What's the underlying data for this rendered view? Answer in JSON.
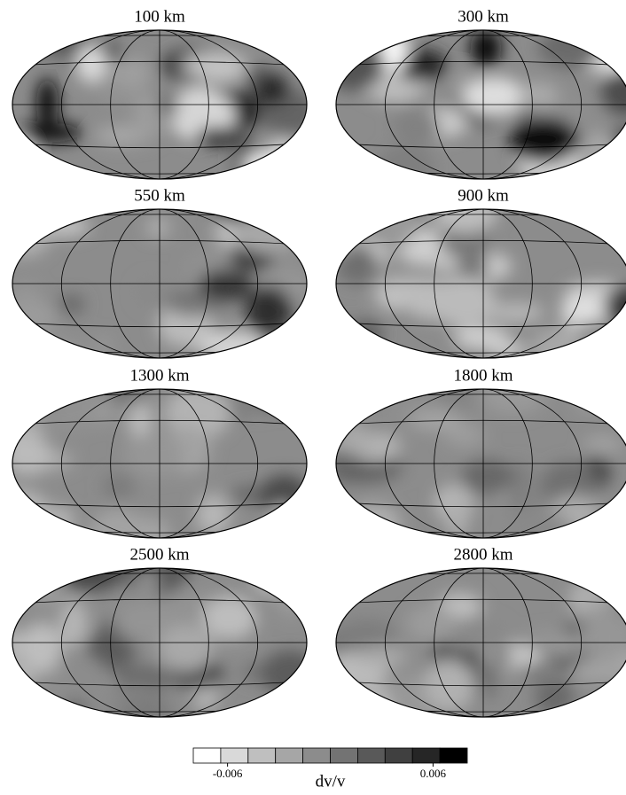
{
  "panels": [
    {
      "title": "100 km"
    },
    {
      "title": "300 km"
    },
    {
      "title": "550 km"
    },
    {
      "title": "900 km"
    },
    {
      "title": "1300 km"
    },
    {
      "title": "1800 km"
    },
    {
      "title": "2500 km"
    },
    {
      "title": "2800 km"
    }
  ],
  "colorbar": {
    "label": "dv/v",
    "lim": [
      -0.008,
      0.008
    ],
    "ticks": [
      -0.006,
      0.006
    ],
    "colors": [
      "#ffffff",
      "#d9d9d9",
      "#bfbfbf",
      "#a6a6a6",
      "#8c8c8c",
      "#737373",
      "#595959",
      "#404040",
      "#262626",
      "#000000"
    ]
  }
}
